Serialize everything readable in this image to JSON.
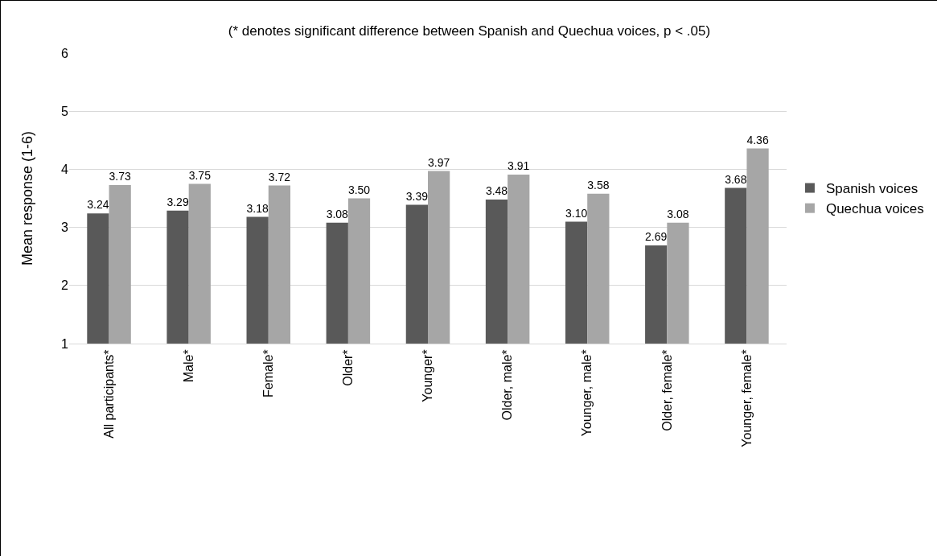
{
  "chart_data": {
    "type": "bar",
    "title": "(* denotes significant difference between Spanish and Quechua voices, p < .05)",
    "ylabel": "Mean response (1-6)",
    "categories": [
      "All participants*",
      "Male*",
      "Female*",
      "Older*",
      "Younger*",
      "Older, male*",
      "Younger, male*",
      "Older, female*",
      "Younger, female*"
    ],
    "series": [
      {
        "name": "Spanish voices",
        "color": "#595959",
        "values": [
          3.24,
          3.29,
          3.18,
          3.08,
          3.39,
          3.48,
          3.1,
          2.69,
          3.68
        ],
        "value_labels": [
          "3.24",
          "3.29",
          "3.18",
          "3.08",
          "3.39",
          "3.48",
          "3.10",
          "2.69",
          "3.68"
        ]
      },
      {
        "name": "Quechua voices",
        "color": "#a6a6a6",
        "values": [
          3.73,
          3.75,
          3.72,
          3.5,
          3.97,
          3.91,
          3.58,
          3.08,
          4.36
        ],
        "value_labels": [
          "3.73",
          "3.75",
          "3.72",
          "3.50",
          "3.97",
          "3.91",
          "3.58",
          "3.08",
          "4.36"
        ]
      }
    ],
    "ylim": [
      1,
      6
    ],
    "yticks": [
      1,
      2,
      3,
      4,
      5,
      6
    ],
    "grid": "y",
    "legend": "right"
  }
}
